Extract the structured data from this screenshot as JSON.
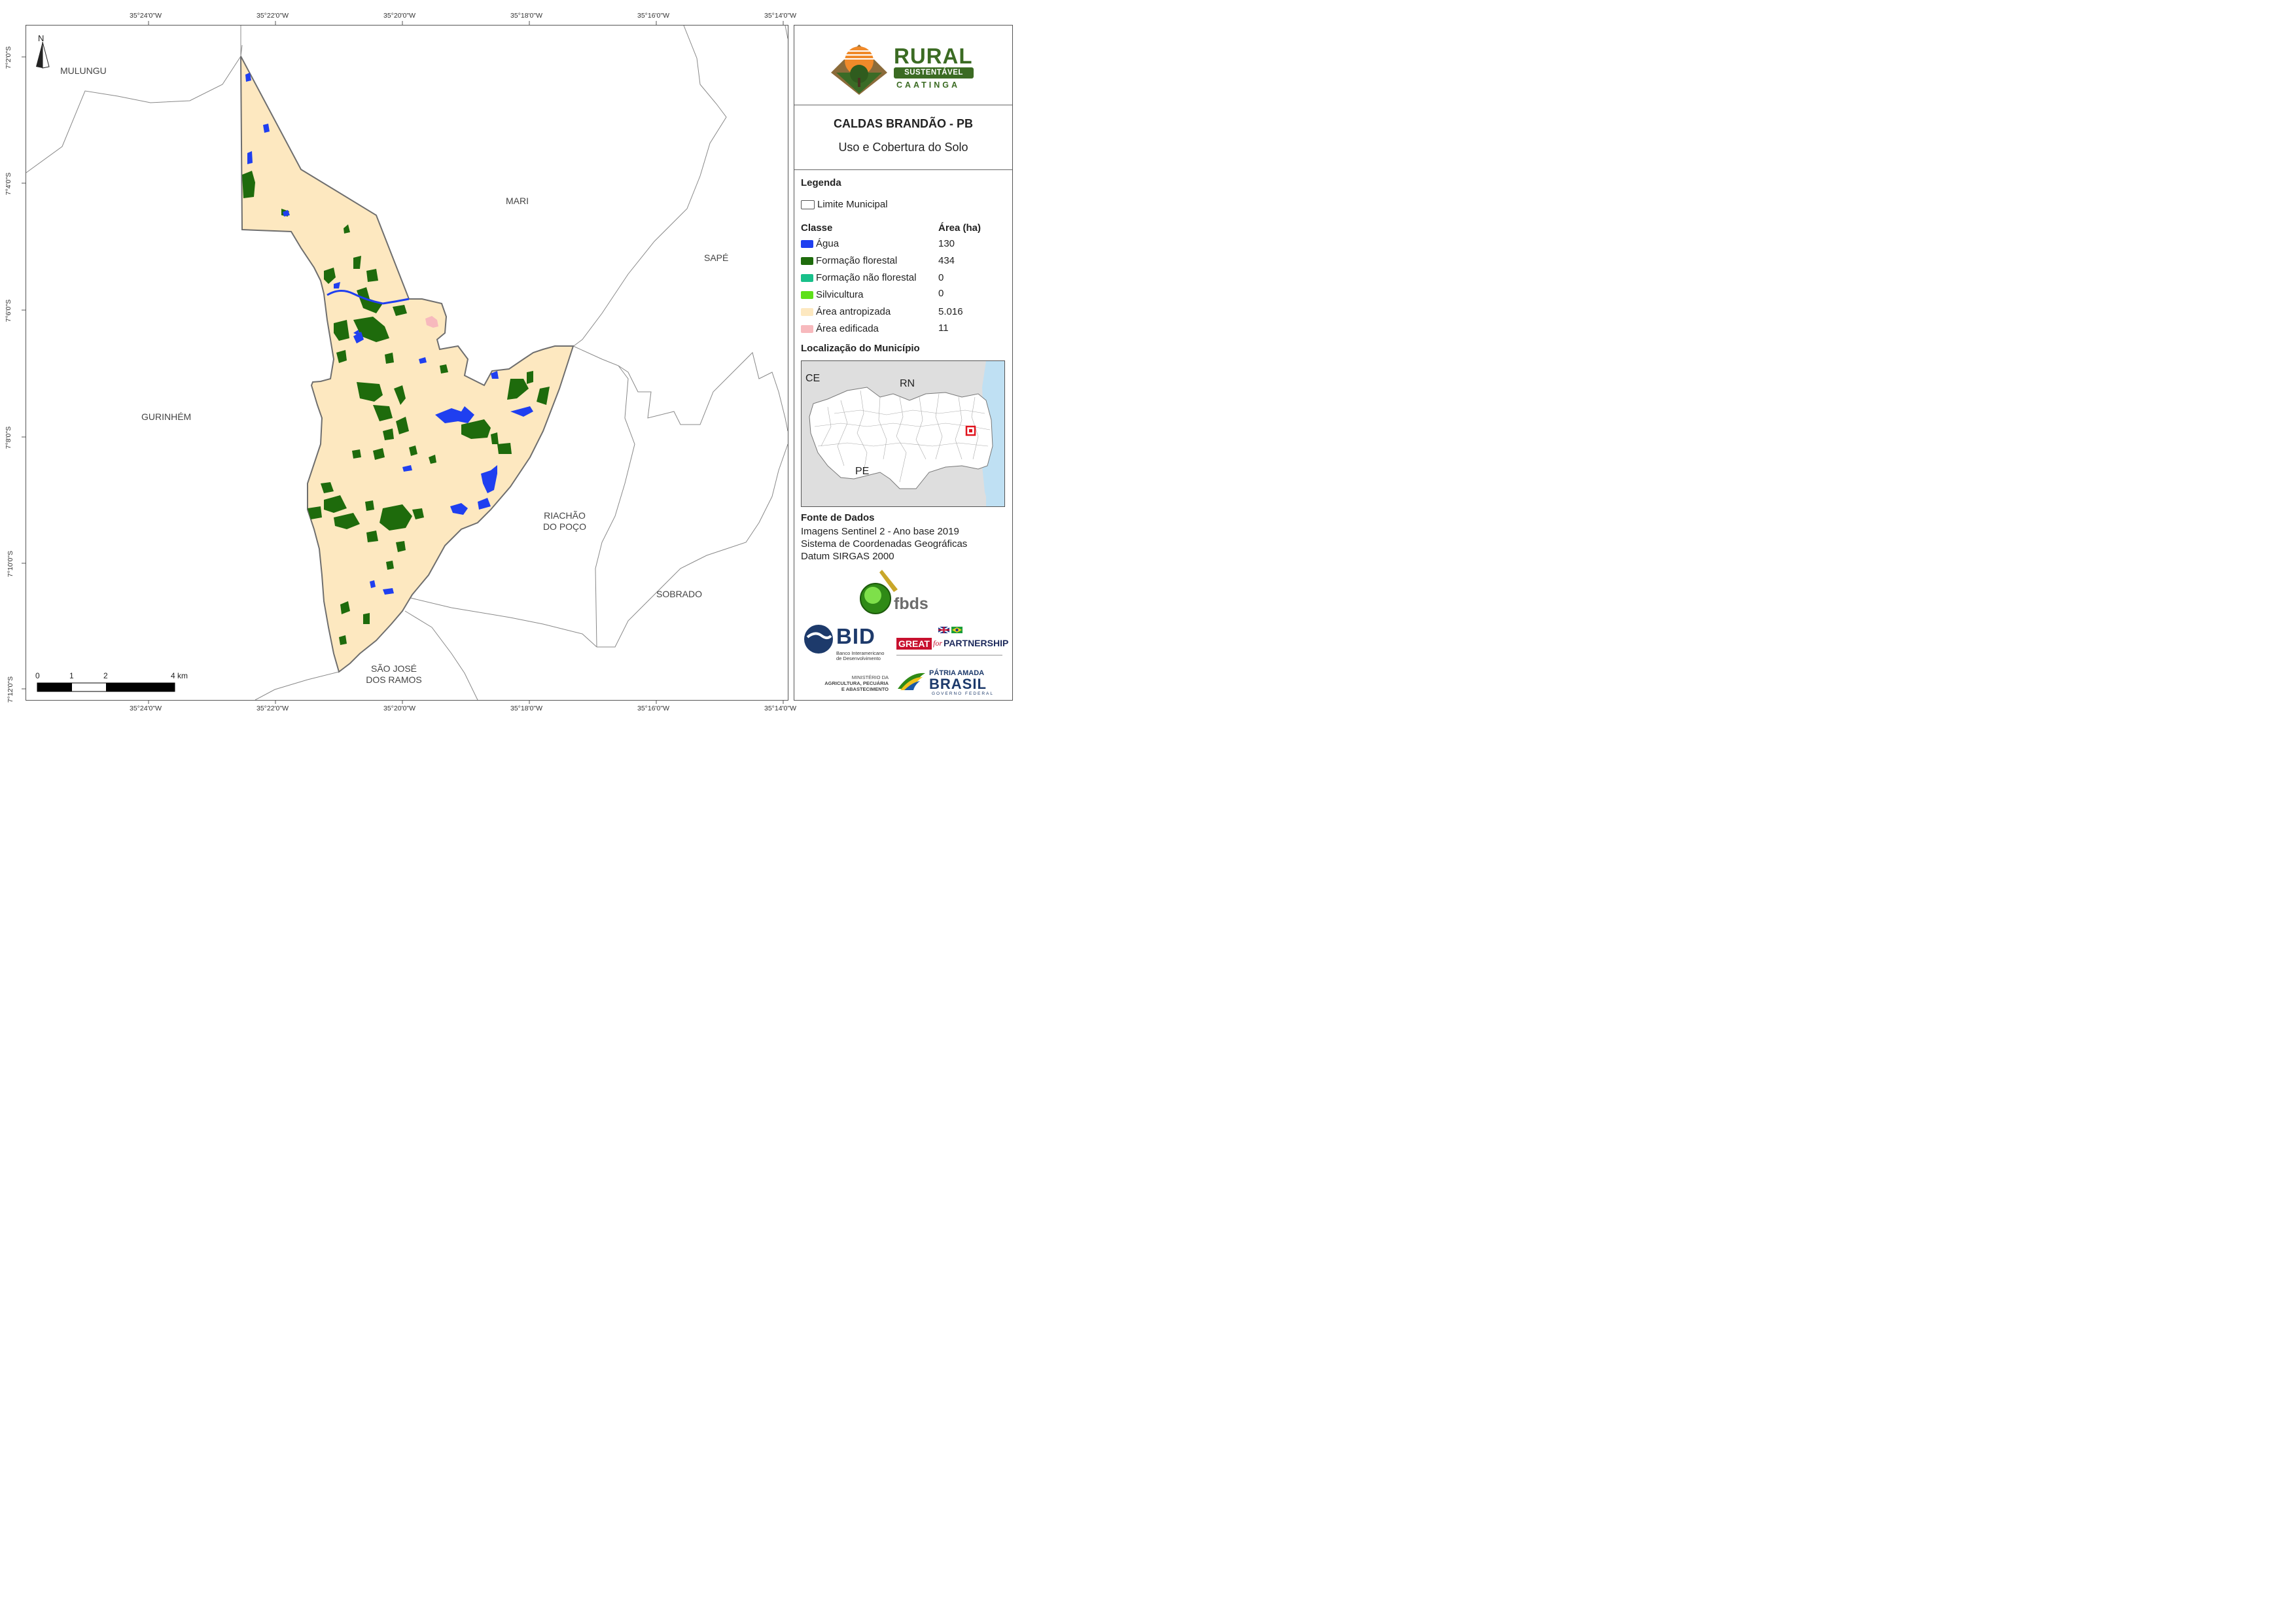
{
  "coords": {
    "top": [
      "35°24'0\"W",
      "35°22'0\"W",
      "35°20'0\"W",
      "35°18'0\"W",
      "35°16'0\"W",
      "35°14'0\"W"
    ],
    "bottom": [
      "35°24'0\"W",
      "35°22'0\"W",
      "35°20'0\"W",
      "35°18'0\"W",
      "35°16'0\"W",
      "35°14'0\"W"
    ],
    "left": [
      "7°2'0\"S",
      "7°4'0\"S",
      "7°6'0\"S",
      "7°8'0\"S",
      "7°10'0\"S",
      "7°12'0\"S"
    ]
  },
  "map": {
    "north": "N",
    "neighbors": {
      "mulungu": "MULUNGU",
      "mari": "MARI",
      "sape": "SAPÉ",
      "gurinhem": "GURINHÉM",
      "riachao_l1": "RIACHÃO",
      "riachao_l2": "DO POÇO",
      "sobrado": "SOBRADO",
      "saojose_l1": "SÃO JOSÉ",
      "saojose_l2": "DOS RAMOS"
    },
    "scale": {
      "t0": "0",
      "t1": "1",
      "t2": "2",
      "t4": "4 km"
    }
  },
  "logo": {
    "rural": "RURAL",
    "sustentavel": "SUSTENTÁVEL",
    "caatinga": "CAATINGA"
  },
  "title": "CALDAS BRANDÃO - PB",
  "subtitle": "Uso e Cobertura do Solo",
  "legend": {
    "heading": "Legenda",
    "limit": "Limite Municipal",
    "class_header": "Classe",
    "area_header": "Área (ha)",
    "items": [
      {
        "label": "Água",
        "area": "130",
        "color": "#1f3ff0"
      },
      {
        "label": "Formação florestal",
        "area": "434",
        "color": "#1e6b0c"
      },
      {
        "label": "Formação não florestal",
        "area": "0",
        "color": "#19c08a"
      },
      {
        "label": "Silvicultura",
        "area": "0",
        "color": "#5ee01a"
      },
      {
        "label": "Área antropizada",
        "area": "5.016",
        "color": "#fde8c0"
      },
      {
        "label": "Área edificada",
        "area": "11",
        "color": "#f7b9bd"
      }
    ]
  },
  "location": {
    "heading": "Localização do Município",
    "ce": "CE",
    "rn": "RN",
    "pe": "PE"
  },
  "source": {
    "heading": "Fonte de Dados",
    "line1": "Imagens Sentinel 2 - Ano base 2019",
    "line2": "Sistema de Coordenadas Geográficas",
    "line3": "Datum SIRGAS 2000"
  },
  "partners": {
    "fbds": "fbds",
    "bid": "BID",
    "bid_sub1": "Banco Interamericano",
    "bid_sub2": "de Desenvolvimento",
    "great": "GREAT",
    "for": "for",
    "partnership": "PARTNERSHIP",
    "min1": "MINISTÉRIO DA",
    "min2": "AGRICULTURA, PECUÁRIA",
    "min3": "E ABASTECIMENTO",
    "patria": "PÁTRIA AMADA",
    "brasil": "BRASIL",
    "gov": "GOVERNO FEDERAL"
  }
}
